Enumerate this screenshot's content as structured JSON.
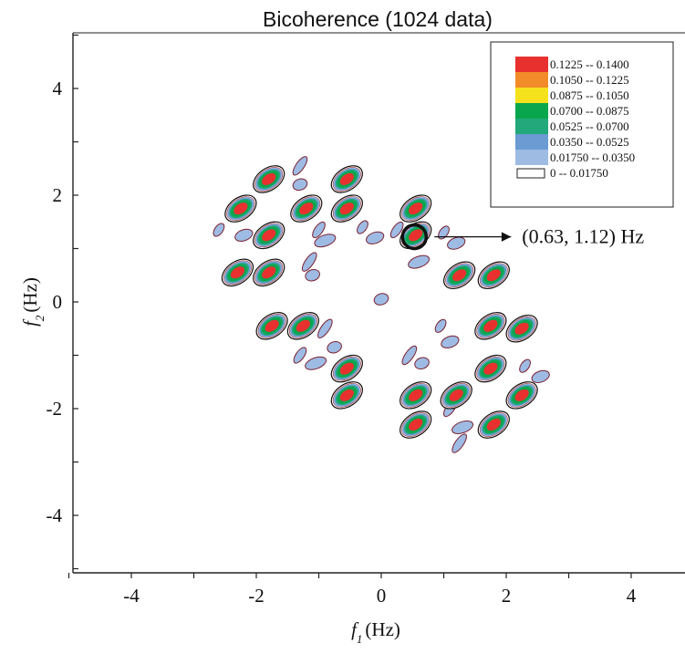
{
  "chart_data": {
    "type": "heatmap",
    "subtype": "filled-contour",
    "title": "Bicoherence (1024 data)",
    "xlabel": {
      "symbol": "f",
      "sub": "1",
      "unit": "(Hz)"
    },
    "ylabel": {
      "symbol": "f",
      "sub": "2",
      "unit": "(Hz)"
    },
    "xlim": [
      -5,
      5
    ],
    "ylim": [
      -5,
      5
    ],
    "xticks": [
      -4,
      -2,
      0,
      2,
      4
    ],
    "yticks": [
      -4,
      -2,
      0,
      2,
      4
    ],
    "xtick_labels": [
      "-4",
      "-2",
      "0",
      "2",
      "4"
    ],
    "ytick_labels": [
      "-4",
      "-2",
      "0",
      "2",
      "4"
    ],
    "grid": false,
    "legend_position": "top-right",
    "levels": [
      {
        "label": "0.1225  --  0.1400",
        "color": "#e8312f"
      },
      {
        "label": "0.1050  --  0.1225",
        "color": "#f28c28"
      },
      {
        "label": "0.0875  --  0.1050",
        "color": "#f5e11c"
      },
      {
        "label": "0.0700  --  0.0875",
        "color": "#0aa64e"
      },
      {
        "label": "0.0525  --  0.0700",
        "color": "#22a87a"
      },
      {
        "label": "0.0350  --  0.0525",
        "color": "#6b9bd2"
      },
      {
        "label": "0.01750  --  0.0350",
        "color": "#9ebbe4"
      },
      {
        "label": "0  --  0.01750",
        "color": "#ffffff"
      }
    ],
    "peaks": [
      {
        "x": -1.8,
        "y": 2.3
      },
      {
        "x": -0.55,
        "y": 2.3
      },
      {
        "x": -2.25,
        "y": 1.75
      },
      {
        "x": -1.2,
        "y": 1.75
      },
      {
        "x": -0.55,
        "y": 1.75
      },
      {
        "x": 0.55,
        "y": 1.75
      },
      {
        "x": -1.8,
        "y": 1.25
      },
      {
        "x": 0.55,
        "y": 1.25
      },
      {
        "x": -2.3,
        "y": 0.55
      },
      {
        "x": -1.8,
        "y": 0.55
      },
      {
        "x": 1.25,
        "y": 0.5
      },
      {
        "x": 1.8,
        "y": 0.5
      },
      {
        "x": -1.75,
        "y": -0.45
      },
      {
        "x": -1.25,
        "y": -0.45
      },
      {
        "x": 1.75,
        "y": -0.45
      },
      {
        "x": 2.25,
        "y": -0.5
      },
      {
        "x": -0.55,
        "y": -1.25
      },
      {
        "x": 1.75,
        "y": -1.25
      },
      {
        "x": -0.55,
        "y": -1.75
      },
      {
        "x": 0.55,
        "y": -1.75
      },
      {
        "x": 1.2,
        "y": -1.75
      },
      {
        "x": 2.25,
        "y": -1.75
      },
      {
        "x": 0.55,
        "y": -2.3
      },
      {
        "x": 1.8,
        "y": -2.3
      }
    ],
    "weak_regions": [
      {
        "x": -2.6,
        "y": 1.35
      },
      {
        "x": -2.2,
        "y": 1.25
      },
      {
        "x": -1.3,
        "y": 2.55
      },
      {
        "x": -1.3,
        "y": 2.2
      },
      {
        "x": -1.0,
        "y": 1.35
      },
      {
        "x": -0.9,
        "y": 1.15
      },
      {
        "x": -0.3,
        "y": 1.4
      },
      {
        "x": -0.1,
        "y": 1.2
      },
      {
        "x": -1.15,
        "y": 0.75
      },
      {
        "x": -1.1,
        "y": 0.5
      },
      {
        "x": 0.25,
        "y": 1.35
      },
      {
        "x": 0.6,
        "y": 0.75
      },
      {
        "x": 1.0,
        "y": 1.3
      },
      {
        "x": 1.2,
        "y": 1.1
      },
      {
        "x": -0.9,
        "y": -0.5
      },
      {
        "x": -0.75,
        "y": -0.85
      },
      {
        "x": -1.3,
        "y": -1.0
      },
      {
        "x": -1.05,
        "y": -1.15
      },
      {
        "x": 0.95,
        "y": -0.45
      },
      {
        "x": 1.1,
        "y": -0.75
      },
      {
        "x": 0.45,
        "y": -1.0
      },
      {
        "x": 0.65,
        "y": -1.15
      },
      {
        "x": 1.1,
        "y": -2.0
      },
      {
        "x": 1.3,
        "y": -2.35
      },
      {
        "x": 2.3,
        "y": -1.2
      },
      {
        "x": 2.55,
        "y": -1.4
      },
      {
        "x": 1.25,
        "y": -2.65
      },
      {
        "x": 0.0,
        "y": 0.05
      }
    ],
    "annotation": {
      "text": "(0.63, 1.12) Hz",
      "x": 0.53,
      "y": 1.22
    }
  }
}
